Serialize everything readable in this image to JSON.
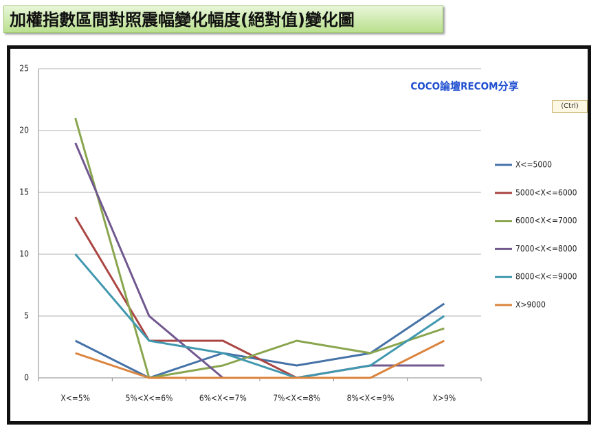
{
  "chart_data": {
    "type": "line",
    "title": "加權指數區間對照震幅變化幅度(絕對值)變化圖",
    "annotation": "COCO論壇RECOM分享",
    "categories": [
      "X<=5%",
      "5%<X<=6%",
      "6%<X<=7%",
      "7%<X<=8%",
      "8%<X<=9%",
      "X>9%"
    ],
    "series": [
      {
        "name": "X<=5000",
        "color": "#4572a7",
        "values": [
          3,
          0,
          2,
          1,
          2,
          6
        ]
      },
      {
        "name": "5000<X<=6000",
        "color": "#aa4643",
        "values": [
          13,
          3,
          3,
          0,
          1,
          1
        ]
      },
      {
        "name": "6000<X<=7000",
        "color": "#89a54e",
        "values": [
          21,
          0,
          1,
          3,
          2,
          4
        ]
      },
      {
        "name": "7000<X<=8000",
        "color": "#71588f",
        "values": [
          19,
          5,
          0,
          0,
          1,
          1
        ]
      },
      {
        "name": "8000<X<=9000",
        "color": "#4198af",
        "values": [
          10,
          3,
          2,
          0,
          1,
          5
        ]
      },
      {
        "name": "X>9000",
        "color": "#db843d",
        "values": [
          2,
          0,
          0,
          0,
          0,
          3
        ]
      }
    ],
    "ylim": [
      0,
      25
    ],
    "yticks": [
      0,
      5,
      10,
      15,
      20,
      25
    ],
    "grid": true,
    "legend": "right"
  },
  "paste_button": "(Ctrl)"
}
